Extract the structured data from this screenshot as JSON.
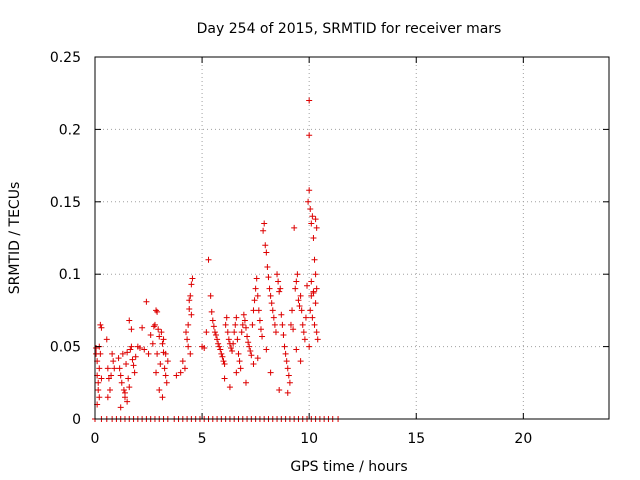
{
  "chart_data": {
    "type": "scatter",
    "title": "Day 254 of 2015, SRMTID for receiver mars",
    "xlabel": "GPS time / hours",
    "ylabel": "SRMTID / TECUs",
    "xlim": [
      0,
      24
    ],
    "ylim": [
      0,
      0.25
    ],
    "grid": true,
    "marker": "+",
    "color": "#dd0000",
    "x_ticks": [
      {
        "value": 0,
        "label": "0"
      },
      {
        "value": 5,
        "label": "5"
      },
      {
        "value": 10,
        "label": "10"
      },
      {
        "value": 15,
        "label": "15"
      },
      {
        "value": 20,
        "label": "20"
      }
    ],
    "y_ticks": [
      {
        "value": 0,
        "label": "0"
      },
      {
        "value": 0.05,
        "label": "0.05"
      },
      {
        "value": 0.1,
        "label": "0.1"
      },
      {
        "value": 0.15,
        "label": "0.15"
      },
      {
        "value": 0.2,
        "label": "0.2"
      },
      {
        "value": 0.25,
        "label": "0.25"
      }
    ],
    "points": [
      [
        0.05,
        0.049
      ],
      [
        0.05,
        0.045
      ],
      [
        0.1,
        0.04
      ],
      [
        0.1,
        0.03
      ],
      [
        0.15,
        0.025
      ],
      [
        0.15,
        0.02
      ],
      [
        0.2,
        0.05
      ],
      [
        0.2,
        0.035
      ],
      [
        0.25,
        0.065
      ],
      [
        0.3,
        0.063
      ],
      [
        0.2,
        0.015
      ],
      [
        0.1,
        0.01
      ],
      [
        0.3,
        0.028
      ],
      [
        0.25,
        0.045
      ],
      [
        0.55,
        0.055
      ],
      [
        0.6,
        0.035
      ],
      [
        0.65,
        0.028
      ],
      [
        0.7,
        0.02
      ],
      [
        0.75,
        0.03
      ],
      [
        0.8,
        0.045
      ],
      [
        0.6,
        0.015
      ],
      [
        0.85,
        0.04
      ],
      [
        0.9,
        0.035
      ],
      [
        1.1,
        0.042
      ],
      [
        1.15,
        0.035
      ],
      [
        1.2,
        0.03
      ],
      [
        1.25,
        0.025
      ],
      [
        1.3,
        0.045
      ],
      [
        1.35,
        0.02
      ],
      [
        1.4,
        0.015
      ],
      [
        1.45,
        0.038
      ],
      [
        1.5,
        0.046
      ],
      [
        1.55,
        0.028
      ],
      [
        1.6,
        0.022
      ],
      [
        1.65,
        0.048
      ],
      [
        1.7,
        0.05
      ],
      [
        1.75,
        0.041
      ],
      [
        1.8,
        0.037
      ],
      [
        1.85,
        0.032
      ],
      [
        1.6,
        0.068
      ],
      [
        1.7,
        0.062
      ],
      [
        1.5,
        0.012
      ],
      [
        1.4,
        0.018
      ],
      [
        1.2,
        0.008
      ],
      [
        1.9,
        0.043
      ],
      [
        2.0,
        0.05
      ],
      [
        2.1,
        0.049
      ],
      [
        2.2,
        0.063
      ],
      [
        2.3,
        0.048
      ],
      [
        2.4,
        0.081
      ],
      [
        2.5,
        0.045
      ],
      [
        2.6,
        0.058
      ],
      [
        2.7,
        0.052
      ],
      [
        2.75,
        0.064
      ],
      [
        2.8,
        0.065
      ],
      [
        2.85,
        0.075
      ],
      [
        2.9,
        0.074
      ],
      [
        2.95,
        0.062
      ],
      [
        3.0,
        0.057
      ],
      [
        3.05,
        0.038
      ],
      [
        3.1,
        0.06
      ],
      [
        3.15,
        0.052
      ],
      [
        3.2,
        0.046
      ],
      [
        3.25,
        0.035
      ],
      [
        3.3,
        0.03
      ],
      [
        3.35,
        0.025
      ],
      [
        2.9,
        0.045
      ],
      [
        2.85,
        0.032
      ],
      [
        3.0,
        0.02
      ],
      [
        3.15,
        0.015
      ],
      [
        3.3,
        0.045
      ],
      [
        3.2,
        0.055
      ],
      [
        3.4,
        0.04
      ],
      [
        3.8,
        0.03
      ],
      [
        4.0,
        0.032
      ],
      [
        4.1,
        0.04
      ],
      [
        4.2,
        0.035
      ],
      [
        4.25,
        0.06
      ],
      [
        4.3,
        0.055
      ],
      [
        4.35,
        0.065
      ],
      [
        4.4,
        0.076
      ],
      [
        4.45,
        0.085
      ],
      [
        4.5,
        0.093
      ],
      [
        4.55,
        0.097
      ],
      [
        4.4,
        0.082
      ],
      [
        4.5,
        0.072
      ],
      [
        4.45,
        0.045
      ],
      [
        4.35,
        0.05
      ],
      [
        5.0,
        0.05
      ],
      [
        5.1,
        0.049
      ],
      [
        5.2,
        0.06
      ],
      [
        5.3,
        0.11
      ],
      [
        5.4,
        0.085
      ],
      [
        5.45,
        0.074
      ],
      [
        5.5,
        0.068
      ],
      [
        5.55,
        0.064
      ],
      [
        5.6,
        0.06
      ],
      [
        5.65,
        0.058
      ],
      [
        5.7,
        0.055
      ],
      [
        5.75,
        0.052
      ],
      [
        5.8,
        0.05
      ],
      [
        5.85,
        0.048
      ],
      [
        5.9,
        0.045
      ],
      [
        5.95,
        0.043
      ],
      [
        6.0,
        0.04
      ],
      [
        6.05,
        0.038
      ],
      [
        6.1,
        0.065
      ],
      [
        6.15,
        0.07
      ],
      [
        6.2,
        0.06
      ],
      [
        6.25,
        0.055
      ],
      [
        6.3,
        0.052
      ],
      [
        6.35,
        0.049
      ],
      [
        6.4,
        0.047
      ],
      [
        6.45,
        0.052
      ],
      [
        6.5,
        0.06
      ],
      [
        6.55,
        0.065
      ],
      [
        6.6,
        0.07
      ],
      [
        6.65,
        0.055
      ],
      [
        6.7,
        0.045
      ],
      [
        6.75,
        0.04
      ],
      [
        6.8,
        0.035
      ],
      [
        6.85,
        0.06
      ],
      [
        6.9,
        0.065
      ],
      [
        6.95,
        0.072
      ],
      [
        7.0,
        0.068
      ],
      [
        7.05,
        0.063
      ],
      [
        7.1,
        0.057
      ],
      [
        7.15,
        0.053
      ],
      [
        7.2,
        0.05
      ],
      [
        7.25,
        0.047
      ],
      [
        7.3,
        0.044
      ],
      [
        7.35,
        0.065
      ],
      [
        7.4,
        0.075
      ],
      [
        7.45,
        0.082
      ],
      [
        7.5,
        0.09
      ],
      [
        7.55,
        0.097
      ],
      [
        7.6,
        0.085
      ],
      [
        7.65,
        0.075
      ],
      [
        7.7,
        0.068
      ],
      [
        7.75,
        0.062
      ],
      [
        7.8,
        0.057
      ],
      [
        7.85,
        0.13
      ],
      [
        7.9,
        0.135
      ],
      [
        7.95,
        0.12
      ],
      [
        8.0,
        0.115
      ],
      [
        8.05,
        0.105
      ],
      [
        8.1,
        0.098
      ],
      [
        8.15,
        0.09
      ],
      [
        8.2,
        0.085
      ],
      [
        8.25,
        0.08
      ],
      [
        8.3,
        0.075
      ],
      [
        8.35,
        0.07
      ],
      [
        8.4,
        0.065
      ],
      [
        8.45,
        0.06
      ],
      [
        8.5,
        0.1
      ],
      [
        8.55,
        0.095
      ],
      [
        8.6,
        0.088
      ],
      [
        8.65,
        0.09
      ],
      [
        8.7,
        0.072
      ],
      [
        8.75,
        0.065
      ],
      [
        8.8,
        0.058
      ],
      [
        8.85,
        0.05
      ],
      [
        8.9,
        0.045
      ],
      [
        8.95,
        0.04
      ],
      [
        9.0,
        0.035
      ],
      [
        9.05,
        0.03
      ],
      [
        9.1,
        0.025
      ],
      [
        9.15,
        0.065
      ],
      [
        9.2,
        0.075
      ],
      [
        9.25,
        0.062
      ],
      [
        9.3,
        0.132
      ],
      [
        9.35,
        0.09
      ],
      [
        9.4,
        0.095
      ],
      [
        9.45,
        0.1
      ],
      [
        9.5,
        0.082
      ],
      [
        9.55,
        0.078
      ],
      [
        9.6,
        0.085
      ],
      [
        9.65,
        0.075
      ],
      [
        9.7,
        0.065
      ],
      [
        9.75,
        0.06
      ],
      [
        9.8,
        0.055
      ],
      [
        9.85,
        0.07
      ],
      [
        9.9,
        0.092
      ],
      [
        9.95,
        0.15
      ],
      [
        10.0,
        0.22
      ],
      [
        10.0,
        0.196
      ],
      [
        10.0,
        0.158
      ],
      [
        10.05,
        0.145
      ],
      [
        10.1,
        0.135
      ],
      [
        10.15,
        0.14
      ],
      [
        10.2,
        0.125
      ],
      [
        10.25,
        0.11
      ],
      [
        10.3,
        0.1
      ],
      [
        10.35,
        0.09
      ],
      [
        10.1,
        0.085
      ],
      [
        10.2,
        0.088
      ],
      [
        10.3,
        0.08
      ],
      [
        10.05,
        0.075
      ],
      [
        10.15,
        0.07
      ],
      [
        10.25,
        0.065
      ],
      [
        10.35,
        0.06
      ],
      [
        10.4,
        0.055
      ],
      [
        10.0,
        0.05
      ],
      [
        10.1,
        0.095
      ],
      [
        10.2,
        0.087
      ],
      [
        10.3,
        0.138
      ],
      [
        10.35,
        0.132
      ],
      [
        6.05,
        0.028
      ],
      [
        6.3,
        0.022
      ],
      [
        6.6,
        0.032
      ],
      [
        7.05,
        0.025
      ],
      [
        7.4,
        0.038
      ],
      [
        7.6,
        0.042
      ],
      [
        8.0,
        0.048
      ],
      [
        8.2,
        0.032
      ],
      [
        8.6,
        0.02
      ],
      [
        9.0,
        0.018
      ],
      [
        9.4,
        0.048
      ],
      [
        9.6,
        0.04
      ],
      [
        0.0,
        0.0
      ],
      [
        0.3,
        0.0
      ],
      [
        0.55,
        0.0
      ],
      [
        0.8,
        0.0
      ],
      [
        1.0,
        0.0
      ],
      [
        1.2,
        0.0
      ],
      [
        1.4,
        0.0
      ],
      [
        1.6,
        0.0
      ],
      [
        1.8,
        0.0
      ],
      [
        2.0,
        0.0
      ],
      [
        2.2,
        0.0
      ],
      [
        2.4,
        0.0
      ],
      [
        2.6,
        0.0
      ],
      [
        2.8,
        0.0
      ],
      [
        3.0,
        0.0
      ],
      [
        3.2,
        0.0
      ],
      [
        3.4,
        0.0
      ],
      [
        3.7,
        0.0
      ],
      [
        3.9,
        0.0
      ],
      [
        4.1,
        0.0
      ],
      [
        4.3,
        0.0
      ],
      [
        4.5,
        0.0
      ],
      [
        4.7,
        0.0
      ],
      [
        4.9,
        0.0
      ],
      [
        5.1,
        0.0
      ],
      [
        5.3,
        0.0
      ],
      [
        5.5,
        0.0
      ],
      [
        5.7,
        0.0
      ],
      [
        5.9,
        0.0
      ],
      [
        6.1,
        0.0
      ],
      [
        6.3,
        0.0
      ],
      [
        6.5,
        0.0
      ],
      [
        6.7,
        0.0
      ],
      [
        6.9,
        0.0
      ],
      [
        7.1,
        0.0
      ],
      [
        7.3,
        0.0
      ],
      [
        7.5,
        0.0
      ],
      [
        7.7,
        0.0
      ],
      [
        7.9,
        0.0
      ],
      [
        8.1,
        0.0
      ],
      [
        8.3,
        0.0
      ],
      [
        8.5,
        0.0
      ],
      [
        8.7,
        0.0
      ],
      [
        8.9,
        0.0
      ],
      [
        9.1,
        0.0
      ],
      [
        9.3,
        0.0
      ],
      [
        9.5,
        0.0
      ],
      [
        9.7,
        0.0
      ],
      [
        9.9,
        0.0
      ],
      [
        10.1,
        0.0
      ],
      [
        10.3,
        0.0
      ],
      [
        10.5,
        0.0
      ],
      [
        10.7,
        0.0
      ],
      [
        10.9,
        0.0
      ],
      [
        11.1,
        0.0
      ],
      [
        11.35,
        0.0
      ]
    ]
  }
}
